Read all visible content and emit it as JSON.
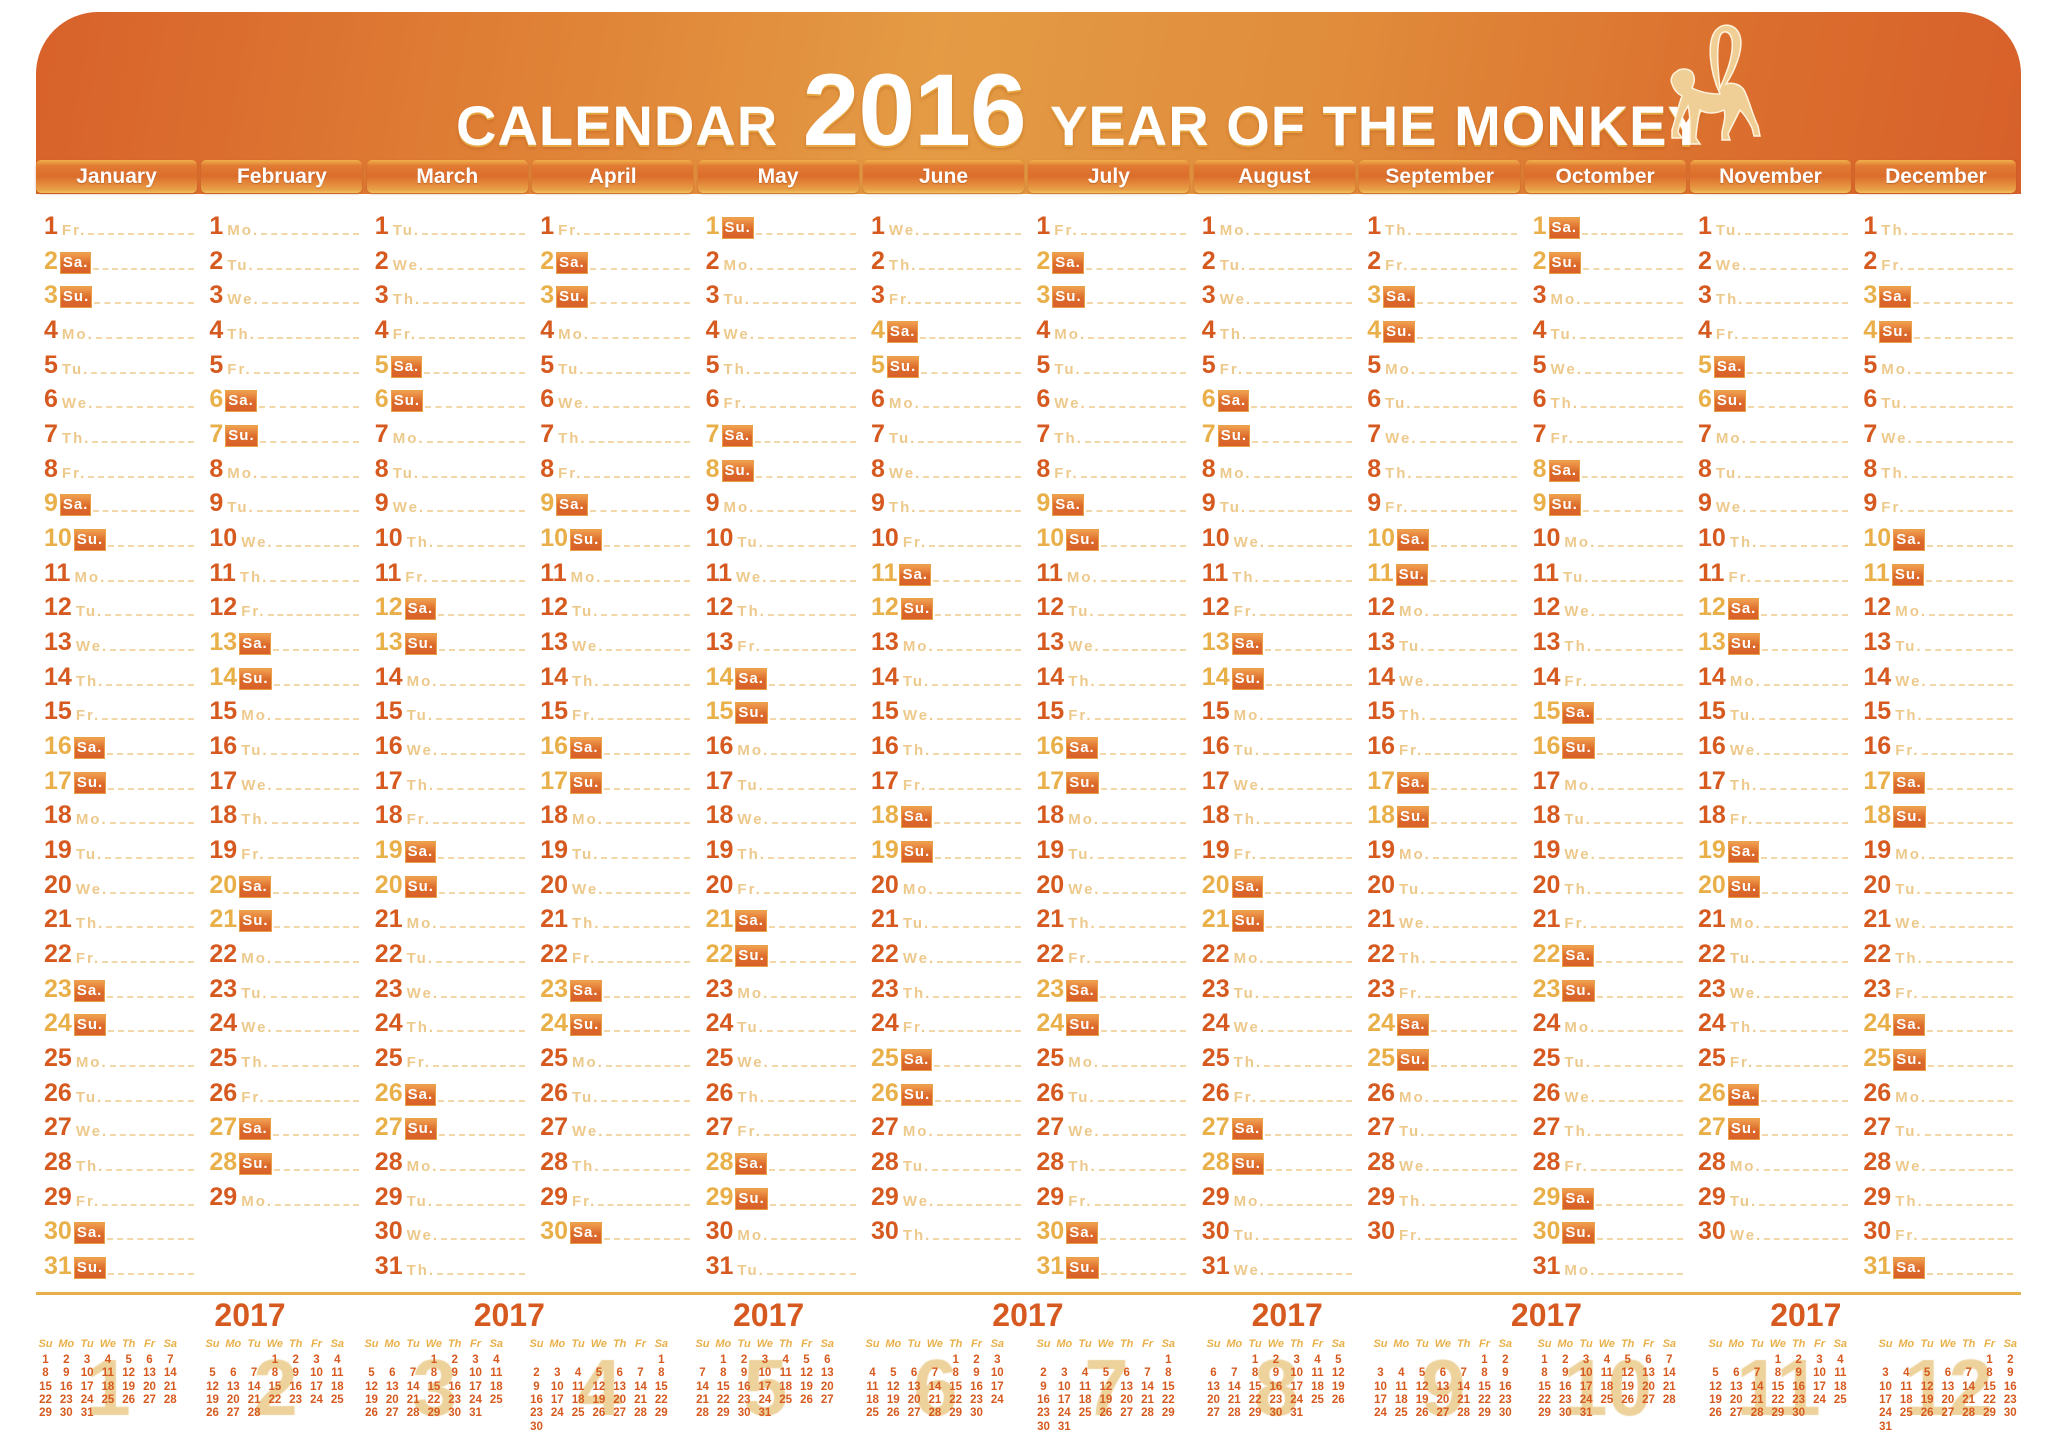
{
  "header": {
    "title_prefix": "CALENDAR",
    "year": "2016",
    "title_suffix": "YEAR OF THE MONKEY",
    "icon": "monkey-icon"
  },
  "weekday_abbrevs": [
    "Mo.",
    "Tu.",
    "We.",
    "Th.",
    "Fr.",
    "Sa.",
    "Su."
  ],
  "weekend_abbrevs": [
    "Sa.",
    "Su."
  ],
  "months": [
    {
      "name": "January",
      "first_weekday": "Fr.",
      "days": 31
    },
    {
      "name": "February",
      "first_weekday": "Mo.",
      "days": 29
    },
    {
      "name": "March",
      "first_weekday": "Tu.",
      "days": 31
    },
    {
      "name": "April",
      "first_weekday": "Fr.",
      "days": 30
    },
    {
      "name": "May",
      "first_weekday": "Su.",
      "days": 31
    },
    {
      "name": "June",
      "first_weekday": "We.",
      "days": 30
    },
    {
      "name": "July",
      "first_weekday": "Fr.",
      "days": 31
    },
    {
      "name": "August",
      "first_weekday": "Mo.",
      "days": 31
    },
    {
      "name": "September",
      "first_weekday": "Th.",
      "days": 30
    },
    {
      "name": "Octomber",
      "first_weekday": "Sa.",
      "days": 31
    },
    {
      "name": "November",
      "first_weekday": "Tu.",
      "days": 30
    },
    {
      "name": "December",
      "first_weekday": "Th.",
      "days": 31
    }
  ],
  "next_year": {
    "year_labels": [
      "2017",
      "2017",
      "2017",
      "2017",
      "2017",
      "2017",
      "2017"
    ],
    "weekday_header": [
      "Su",
      "Mo",
      "Tu",
      "We",
      "Th",
      "Fr",
      "Sa"
    ],
    "months": [
      {
        "number": "1",
        "first_weekday": "Su",
        "days": 31
      },
      {
        "number": "2",
        "first_weekday": "We",
        "days": 28
      },
      {
        "number": "3",
        "first_weekday": "We",
        "days": 31
      },
      {
        "number": "4",
        "first_weekday": "Sa",
        "days": 30
      },
      {
        "number": "5",
        "first_weekday": "Mo",
        "days": 31
      },
      {
        "number": "6",
        "first_weekday": "Th",
        "days": 30
      },
      {
        "number": "7",
        "first_weekday": "Sa",
        "days": 31
      },
      {
        "number": "8",
        "first_weekday": "Tu",
        "days": 31
      },
      {
        "number": "9",
        "first_weekday": "Fr",
        "days": 30
      },
      {
        "number": "10",
        "first_weekday": "Su",
        "days": 31
      },
      {
        "number": "11",
        "first_weekday": "We",
        "days": 30
      },
      {
        "number": "12",
        "first_weekday": "Fr",
        "days": 31
      }
    ]
  },
  "colors": {
    "header_orange": "#dc6a2c",
    "weekday_number": "#d65a1f",
    "weekend_number": "#e9b04a",
    "weekday_abbrev": "#edc98c",
    "monkey": "#efcf95"
  }
}
